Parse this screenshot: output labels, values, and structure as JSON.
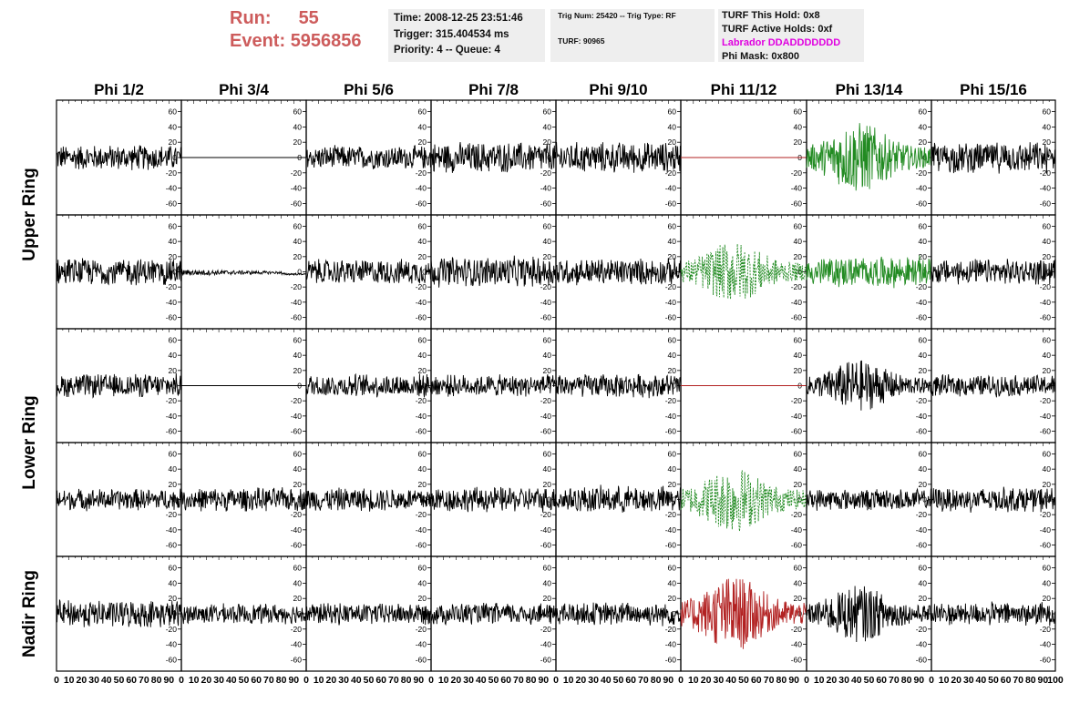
{
  "header": {
    "run_label": "Run:",
    "run_value": "55",
    "event_label": "Event:",
    "event_value": "5956856",
    "time": "Time: 2008-12-25 23:51:46",
    "trigger": "Trigger: 315.404534 ms",
    "priority": "Priority: 4 -- Queue: 4",
    "trig_num": "Trig Num: 25420 -- Trig Type: RF",
    "turf": "TURF: 90965",
    "turf_this_hold": "TURF This Hold: 0x8",
    "turf_active_holds": "TURF Active Holds: 0xf",
    "labrador": "Labrador DDADDDDDDD",
    "phi_mask": "Phi Mask: 0x800"
  },
  "colors": {
    "header_red": "#cd5c5c",
    "labrador_magenta": "#e000e0",
    "trace_black": "#000000",
    "trace_green": "#228b22",
    "trace_red": "#b22222",
    "box_gray": "#eeeeee"
  },
  "chart_data": {
    "type": "line",
    "columns": [
      "Phi 1/2",
      "Phi 3/4",
      "Phi 5/6",
      "Phi 7/8",
      "Phi 9/10",
      "Phi 11/12",
      "Phi 13/14",
      "Phi 15/16"
    ],
    "ring_labels": [
      {
        "label": "Upper Ring",
        "rows": [
          0,
          1
        ]
      },
      {
        "label": "Lower Ring",
        "rows": [
          2,
          3
        ]
      },
      {
        "label": "Nadir Ring",
        "rows": [
          4
        ]
      }
    ],
    "xlim": [
      0,
      100
    ],
    "ylim": [
      -75,
      75
    ],
    "x_ticks": [
      0,
      10,
      20,
      30,
      40,
      50,
      60,
      70,
      80,
      90,
      100
    ],
    "y_ticks": [
      -60,
      -40,
      -20,
      0,
      20,
      40,
      60
    ],
    "panels": [
      [
        {
          "color": "#000000",
          "style": "noise",
          "amp": 14,
          "dashed": false
        },
        {
          "color": "#000000",
          "style": "flat",
          "amp": 0,
          "dashed": false
        },
        {
          "color": "#000000",
          "style": "noise",
          "amp": 13,
          "dashed": false
        },
        {
          "color": "#000000",
          "style": "noise",
          "amp": 17,
          "dashed": false
        },
        {
          "color": "#000000",
          "style": "noise",
          "amp": 17,
          "dashed": false
        },
        {
          "color": "#b22222",
          "style": "flat",
          "amp": 0,
          "dashed": false
        },
        {
          "color": "#228b22",
          "style": "burst",
          "amp": 30,
          "dashed": false
        },
        {
          "color": "#000000",
          "style": "noise",
          "amp": 17,
          "dashed": false
        }
      ],
      [
        {
          "color": "#000000",
          "style": "noise",
          "amp": 15,
          "dashed": false
        },
        {
          "color": "#000000",
          "style": "decay",
          "amp": 4,
          "dashed": false
        },
        {
          "color": "#000000",
          "style": "noise",
          "amp": 14,
          "dashed": false
        },
        {
          "color": "#000000",
          "style": "noise",
          "amp": 17,
          "dashed": false
        },
        {
          "color": "#000000",
          "style": "noise",
          "amp": 15,
          "dashed": false
        },
        {
          "color": "#228b22",
          "style": "burst",
          "amp": 26,
          "dashed": true
        },
        {
          "color": "#228b22",
          "style": "noise",
          "amp": 17,
          "dashed": false
        },
        {
          "color": "#000000",
          "style": "noise",
          "amp": 14,
          "dashed": false
        }
      ],
      [
        {
          "color": "#000000",
          "style": "noise",
          "amp": 13,
          "dashed": false
        },
        {
          "color": "#000000",
          "style": "flat",
          "amp": 0,
          "dashed": false
        },
        {
          "color": "#000000",
          "style": "noise",
          "amp": 13,
          "dashed": false
        },
        {
          "color": "#000000",
          "style": "noise",
          "amp": 12,
          "dashed": false
        },
        {
          "color": "#000000",
          "style": "noise",
          "amp": 13,
          "dashed": false
        },
        {
          "color": "#b22222",
          "style": "flat",
          "amp": 0,
          "dashed": false
        },
        {
          "color": "#000000",
          "style": "burst",
          "amp": 22,
          "dashed": false
        },
        {
          "color": "#000000",
          "style": "noise",
          "amp": 12,
          "dashed": false
        }
      ],
      [
        {
          "color": "#000000",
          "style": "noise",
          "amp": 12,
          "dashed": false
        },
        {
          "color": "#000000",
          "style": "noise",
          "amp": 13,
          "dashed": false
        },
        {
          "color": "#000000",
          "style": "noise",
          "amp": 13,
          "dashed": false
        },
        {
          "color": "#000000",
          "style": "noise",
          "amp": 14,
          "dashed": false
        },
        {
          "color": "#000000",
          "style": "noise",
          "amp": 15,
          "dashed": false
        },
        {
          "color": "#228b22",
          "style": "burst",
          "amp": 28,
          "dashed": true
        },
        {
          "color": "#000000",
          "style": "noise",
          "amp": 12,
          "dashed": false
        },
        {
          "color": "#000000",
          "style": "noise",
          "amp": 14,
          "dashed": false
        }
      ],
      [
        {
          "color": "#000000",
          "style": "noise",
          "amp": 15,
          "dashed": false
        },
        {
          "color": "#000000",
          "style": "noise",
          "amp": 11,
          "dashed": false
        },
        {
          "color": "#000000",
          "style": "noise",
          "amp": 12,
          "dashed": false
        },
        {
          "color": "#000000",
          "style": "noise",
          "amp": 12,
          "dashed": false
        },
        {
          "color": "#000000",
          "style": "noise",
          "amp": 13,
          "dashed": false
        },
        {
          "color": "#b22222",
          "style": "burst",
          "amp": 32,
          "dashed": false
        },
        {
          "color": "#000000",
          "style": "burst",
          "amp": 24,
          "dashed": false
        },
        {
          "color": "#000000",
          "style": "noise",
          "amp": 13,
          "dashed": false
        }
      ]
    ]
  }
}
